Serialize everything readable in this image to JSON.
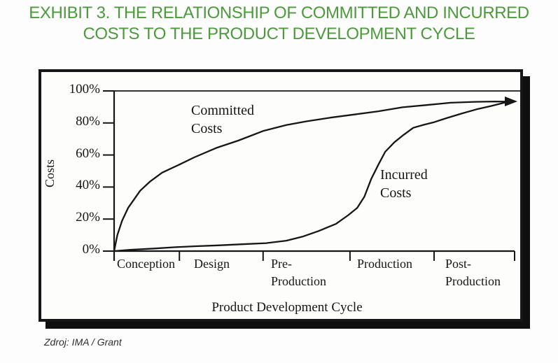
{
  "page": {
    "title_line1": "EXHIBIT 3. THE RELATIONSHIP OF COMMITTED AND INCURRED",
    "title_line2": "COSTS TO THE PRODUCT DEVELOPMENT CYCLE",
    "title_color": "#4c9a3c",
    "source_text": "Zdroj: IMA / Grant"
  },
  "chart_data": {
    "type": "line",
    "title": "",
    "xlabel": "Product Development Cycle",
    "ylabel": "Costs",
    "ylim": [
      0,
      100
    ],
    "ink_color": "#161616",
    "grid": false,
    "legend_position": "inline-annotations",
    "y_tick_labels": [
      "100%",
      "80%",
      "60%",
      "40%",
      "20%",
      "0%"
    ],
    "y_tick_values": [
      100,
      80,
      60,
      40,
      20,
      0
    ],
    "stages": [
      "Conception",
      "Design",
      "Pre-\nProduction",
      "Production",
      "Post-\nProduction"
    ],
    "stage_tick_positions_pct": [
      0,
      16.3,
      37.2,
      58.9,
      79.9,
      100
    ],
    "annotations": [
      "Committed\nCosts",
      "Incurred\nCosts"
    ],
    "series": [
      {
        "name": "Committed Costs",
        "x": [
          0,
          0.8,
          2,
          3.5,
          6.5,
          9,
          12,
          16.3,
          20,
          25.7,
          31,
          37.2,
          43,
          48,
          54,
          60,
          66,
          72,
          78,
          84,
          90,
          95,
          98
        ],
        "y": [
          0,
          10,
          19,
          27,
          37.7,
          43.5,
          49,
          54,
          58.5,
          64.6,
          69,
          75,
          78.7,
          81,
          83.3,
          85.3,
          87.3,
          89.8,
          91.2,
          92.6,
          93.2,
          93.4,
          93.3
        ]
      },
      {
        "name": "Incurred Costs",
        "x": [
          0,
          4,
          10,
          15,
          20,
          26,
          32,
          38,
          43,
          47,
          51,
          55.4,
          58.5,
          60.7,
          62.5,
          64.2,
          66,
          67.7,
          70,
          72,
          74.7,
          77.5,
          79.9,
          83,
          86.9,
          90.5,
          94,
          98
        ],
        "y": [
          0,
          0.8,
          1.6,
          2.4,
          3,
          3.6,
          4.3,
          5,
          6.5,
          9,
          12.5,
          17,
          22.5,
          27,
          34,
          45,
          54,
          62,
          68,
          72,
          77,
          79,
          80.5,
          83,
          86,
          88.5,
          90.5,
          93
        ]
      }
    ]
  }
}
